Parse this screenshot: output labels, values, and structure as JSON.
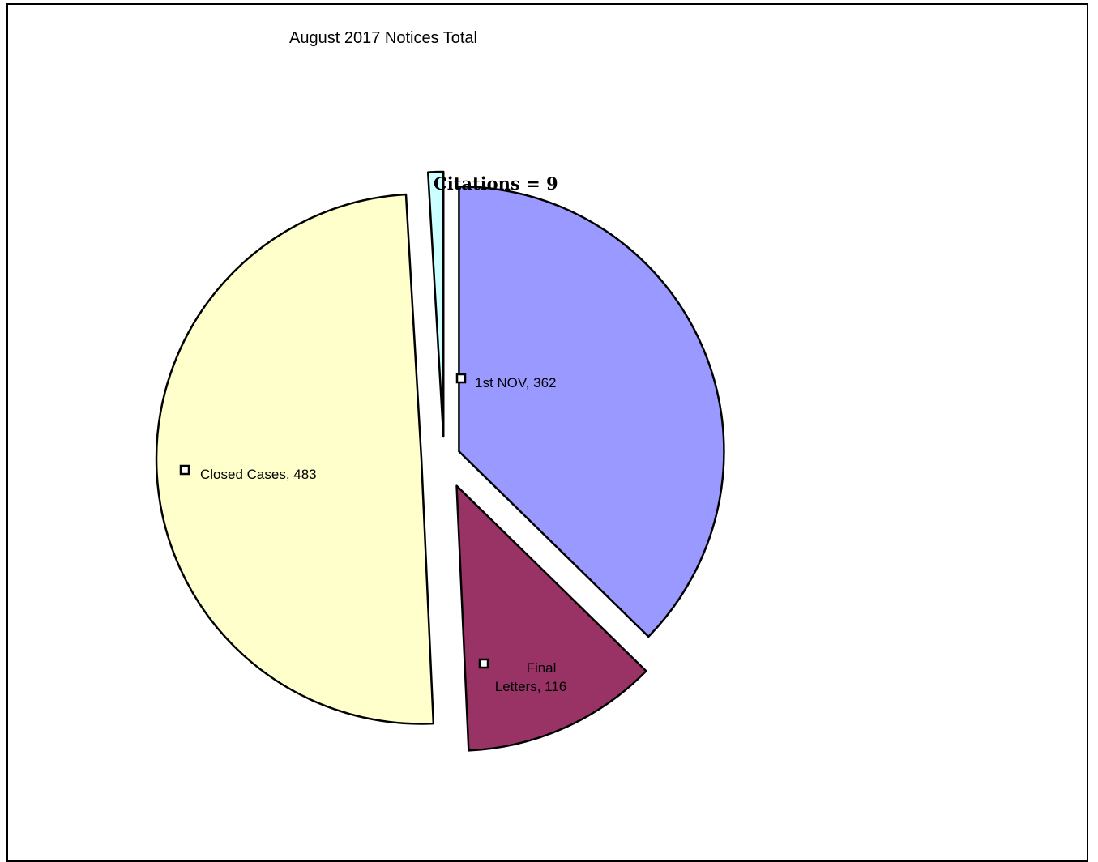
{
  "chart_data": {
    "type": "pie",
    "title": "August 2017 Notices Total",
    "slices": [
      {
        "label": "1st NOV",
        "value": 362,
        "display": "1st NOV, 362",
        "color": "#9999ff",
        "label_lines": [
          "1st NOV, 362"
        ]
      },
      {
        "label": "Final Letters",
        "value": 116,
        "display": "Final Letters, 116",
        "color": "#993366",
        "label_lines": [
          "Final",
          "Letters, 116"
        ]
      },
      {
        "label": "Closed Cases",
        "value": 483,
        "display": "Closed Cases, 483",
        "color": "#ffffcc",
        "label_lines": [
          "Closed Cases, 483"
        ]
      },
      {
        "label": "Citations",
        "value": 9,
        "display": "Citations = 9",
        "color": "#ccffff",
        "label_lines": [
          "Citations = 9"
        ]
      }
    ],
    "exploded": true,
    "legend": "none"
  }
}
